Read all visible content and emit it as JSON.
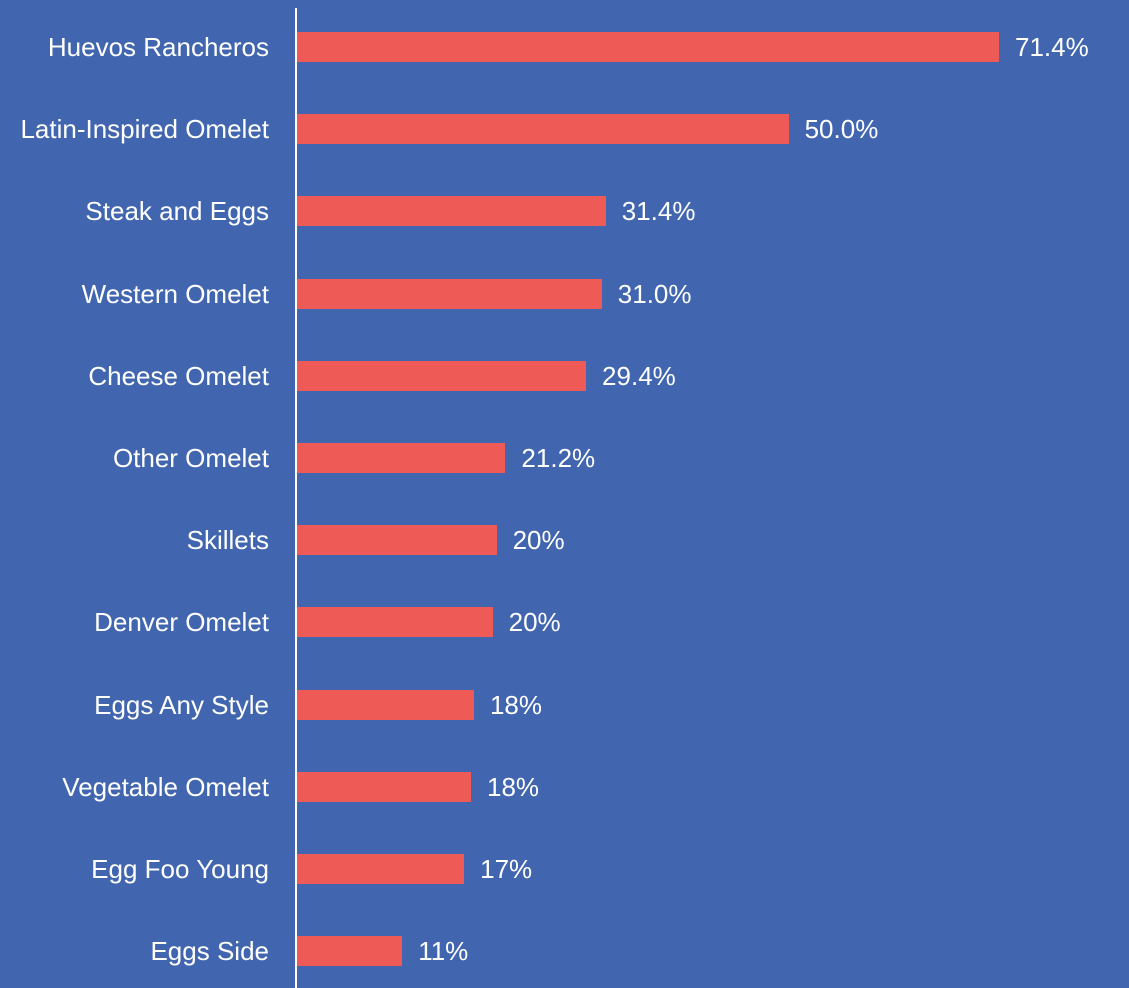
{
  "chart_data": {
    "type": "bar",
    "orientation": "horizontal",
    "color": "#ee5a56",
    "categories": [
      "Huevos Rancheros",
      "Latin-Inspired Omelet",
      "Steak and Eggs",
      "Western Omelet",
      "Cheese Omelet",
      "Other Omelet",
      "Skillets",
      "Denver Omelet",
      "Eggs Any Style",
      "Vegetable Omelet",
      "Egg Foo Young",
      "Eggs Side"
    ],
    "values": [
      71.4,
      50.0,
      31.4,
      31.0,
      29.4,
      21.2,
      20.3,
      19.9,
      18.0,
      17.7,
      17.0,
      10.7
    ],
    "value_labels": [
      "71.4%",
      "50.0%",
      "31.4%",
      "31.0%",
      "29.4%",
      "21.2%",
      "20%",
      "20%",
      "18%",
      "18%",
      "17%",
      "11%"
    ]
  }
}
